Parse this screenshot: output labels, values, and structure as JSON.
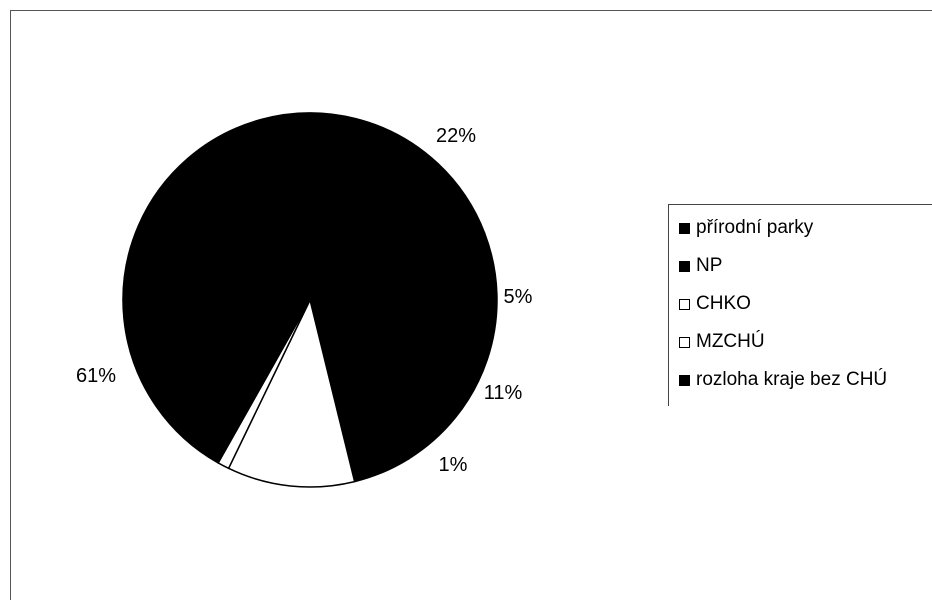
{
  "chart_data": {
    "type": "pie",
    "title": "",
    "slices": [
      {
        "name": "přírodní parky",
        "value": 22,
        "label": "22%",
        "color": "#000000"
      },
      {
        "name": "NP",
        "value": 5,
        "label": "5%",
        "color": "#000000"
      },
      {
        "name": "CHKO",
        "value": 11,
        "label": "11%",
        "color": "#ffffff"
      },
      {
        "name": "MZCHÚ",
        "value": 1,
        "label": "1%",
        "color": "#ffffff"
      },
      {
        "name": "rozloha kraje bez CHÚ",
        "value": 61,
        "label": "61%",
        "color": "#000000"
      }
    ],
    "legend": {
      "placement": "right",
      "entries": [
        "přírodní parky",
        "NP",
        "CHKO",
        "MZCHÚ",
        "rozloha kraje bez CHÚ"
      ]
    }
  }
}
